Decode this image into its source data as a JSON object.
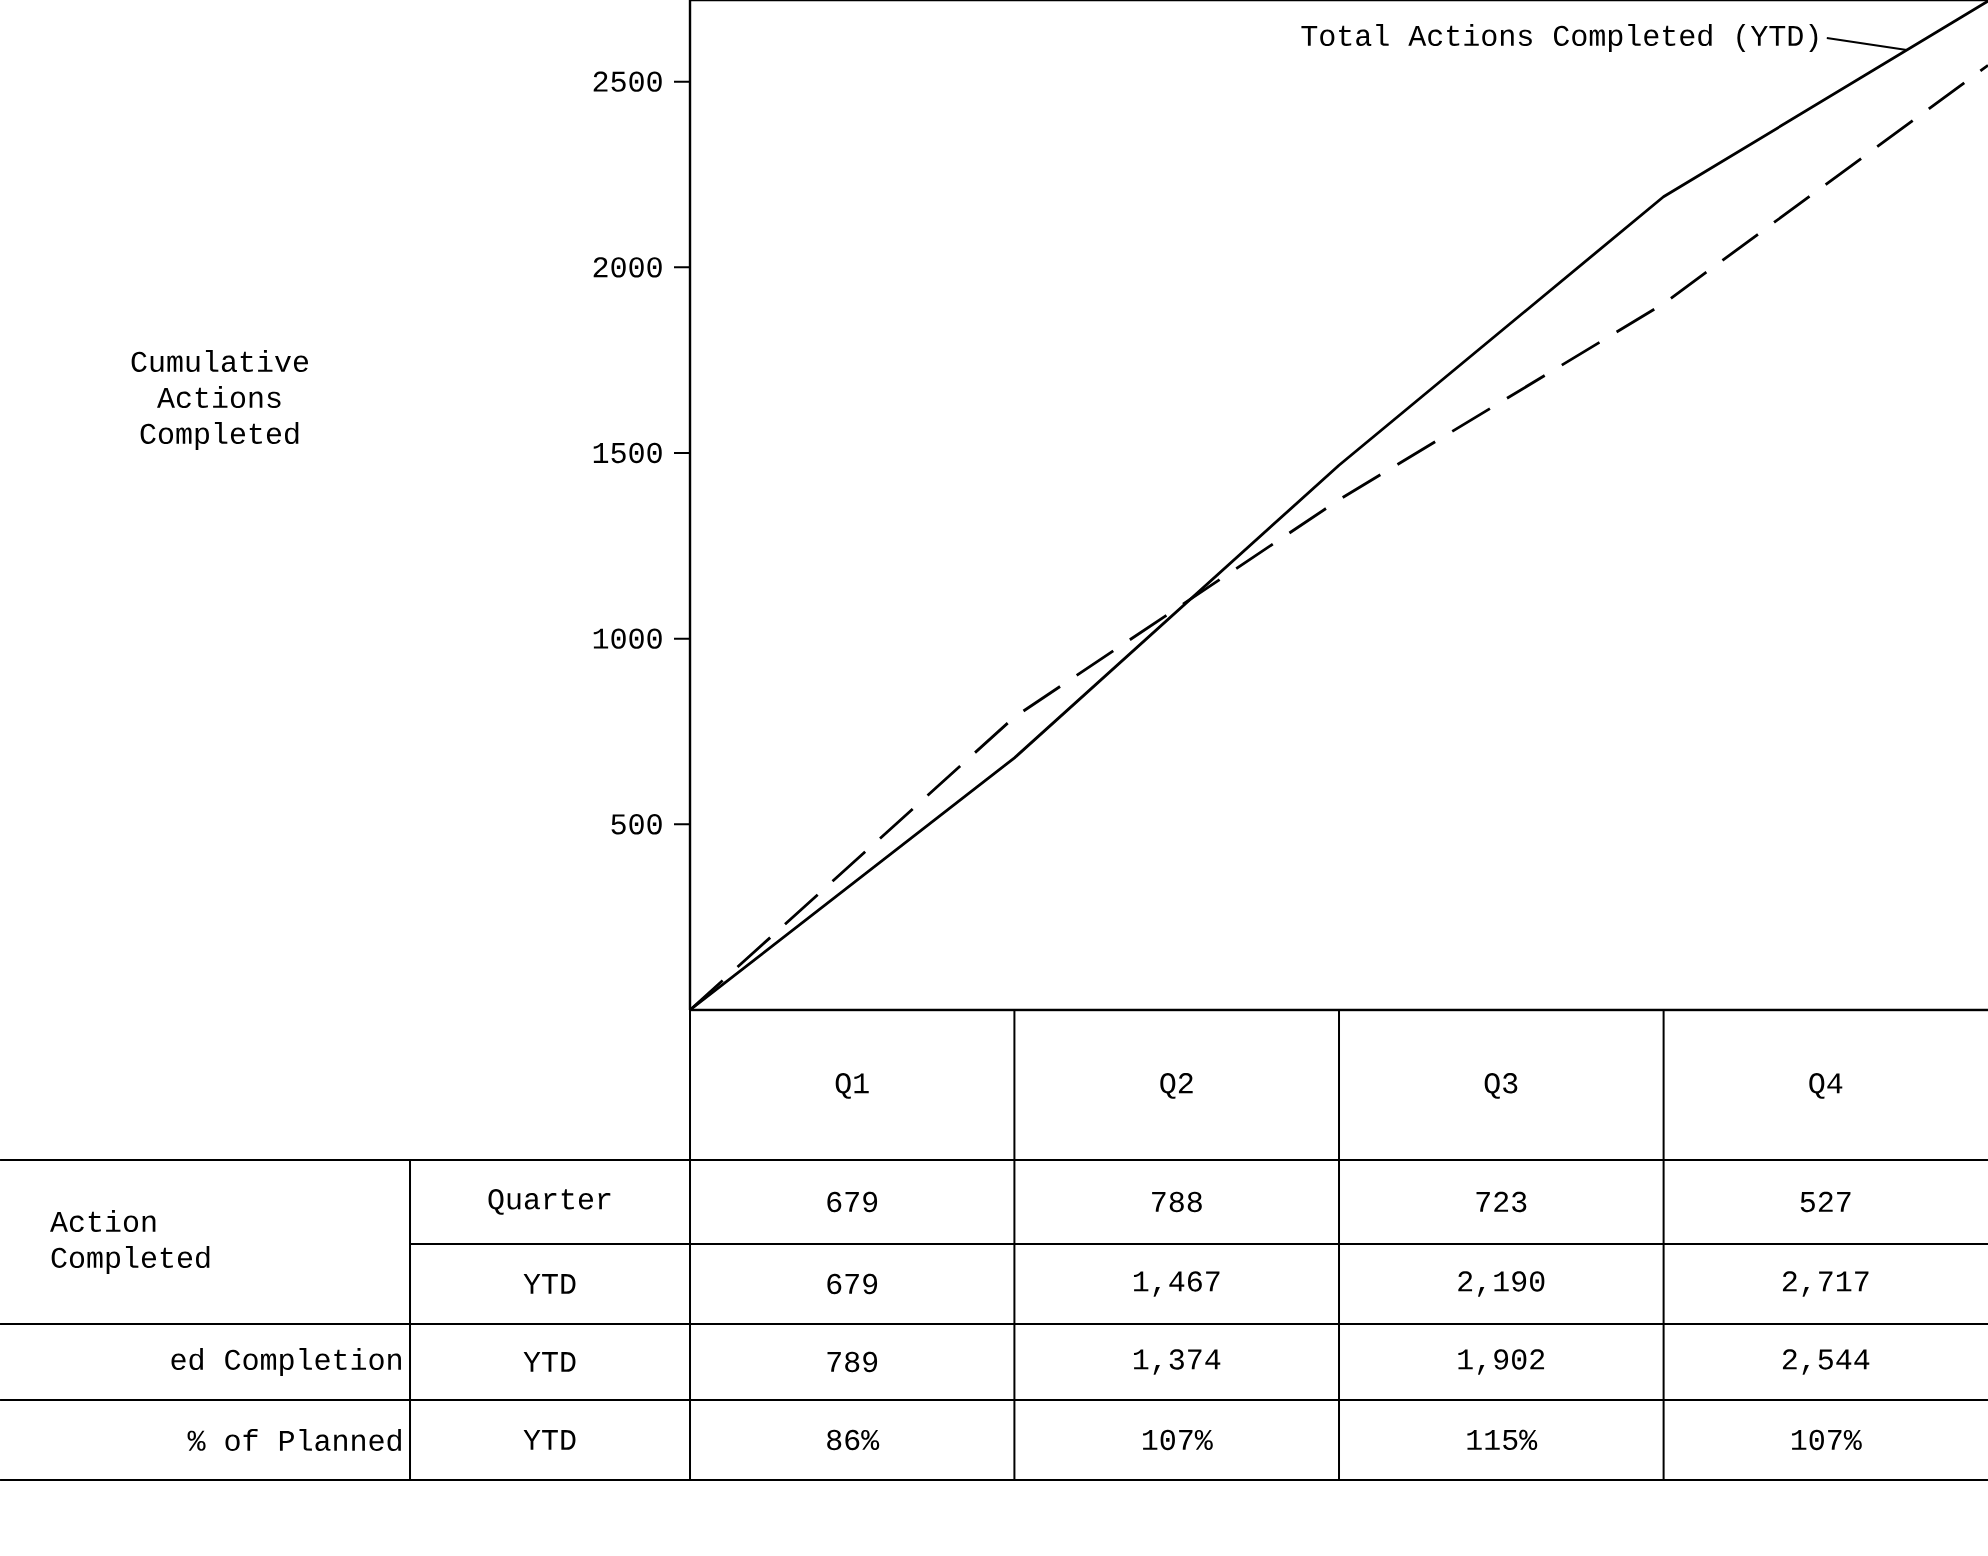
{
  "chart_data": {
    "type": "line",
    "categories": [
      null,
      null,
      null,
      null,
      null
    ],
    "ylim": [
      0,
      2720
    ],
    "yticks": [
      500,
      1000,
      1500,
      2000,
      2500
    ],
    "series": [
      {
        "name": "Total Actions Completed (YTD)",
        "color": "#000000",
        "line_style": "solid",
        "values": [
          0,
          679,
          1467,
          2190,
          2717
        ]
      },
      {
        "color": "#000000",
        "line_style": "dashed",
        "values": [
          0,
          789,
          1374,
          1902,
          2544
        ]
      }
    ],
    "marker": "none",
    "grid": false,
    "annotations": [
      "Action Completed",
      "Quarter",
      "YTD",
      "ed Completion",
      "YTD",
      "% of Planned",
      "YTD",
      "679",
      "788",
      "723",
      "527",
      "86%",
      "107%",
      "115%",
      "107%",
      "Q1",
      "Q2",
      "Q3",
      "Q4",
      "Cumulative Actions Completed",
      "679",
      "1,467",
      "2,190",
      "2,717",
      "789",
      "1,374",
      "1,902",
      "2,544"
    ]
  }
}
